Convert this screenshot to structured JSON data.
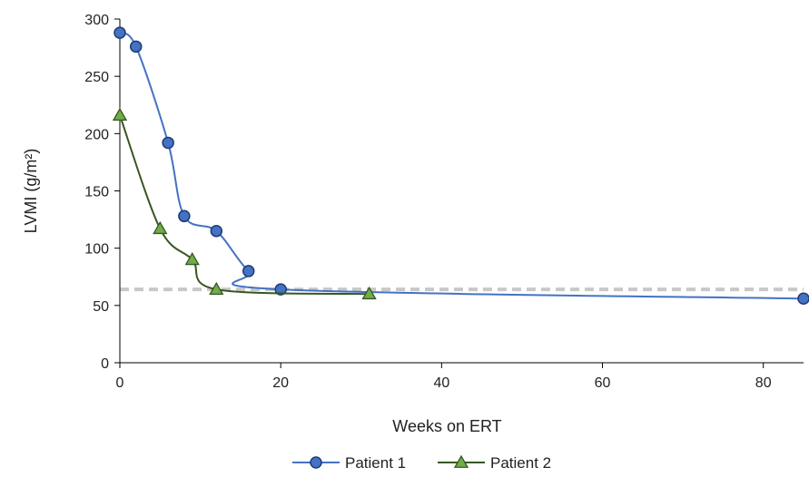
{
  "chart_data": {
    "type": "line",
    "xlabel": "Weeks on ERT",
    "ylabel": "LVMI (g/m²)",
    "xlim": [
      0,
      85
    ],
    "ylim": [
      0,
      300
    ],
    "xticks": [
      0,
      20,
      40,
      60,
      80
    ],
    "yticks": [
      0,
      50,
      100,
      150,
      200,
      250,
      300
    ],
    "grid": false,
    "legend_position": "bottom",
    "reference_line": {
      "y": 64,
      "style": "dashed",
      "color": "#c8c8c8"
    },
    "series": [
      {
        "name": "Patient 1",
        "marker": "circle",
        "line_color": "#4472c4",
        "marker_fill": "#4472c4",
        "marker_edge": "#1f3b73",
        "x": [
          0,
          2,
          6,
          8,
          12,
          16,
          20,
          85
        ],
        "y": [
          288,
          276,
          192,
          128,
          115,
          80,
          64,
          56
        ]
      },
      {
        "name": "Patient 2",
        "marker": "triangle",
        "line_color": "#375623",
        "marker_fill": "#70ad47",
        "marker_edge": "#375623",
        "x": [
          0,
          5,
          9,
          12,
          31
        ],
        "y": [
          216,
          117,
          90,
          64,
          60
        ]
      }
    ]
  }
}
